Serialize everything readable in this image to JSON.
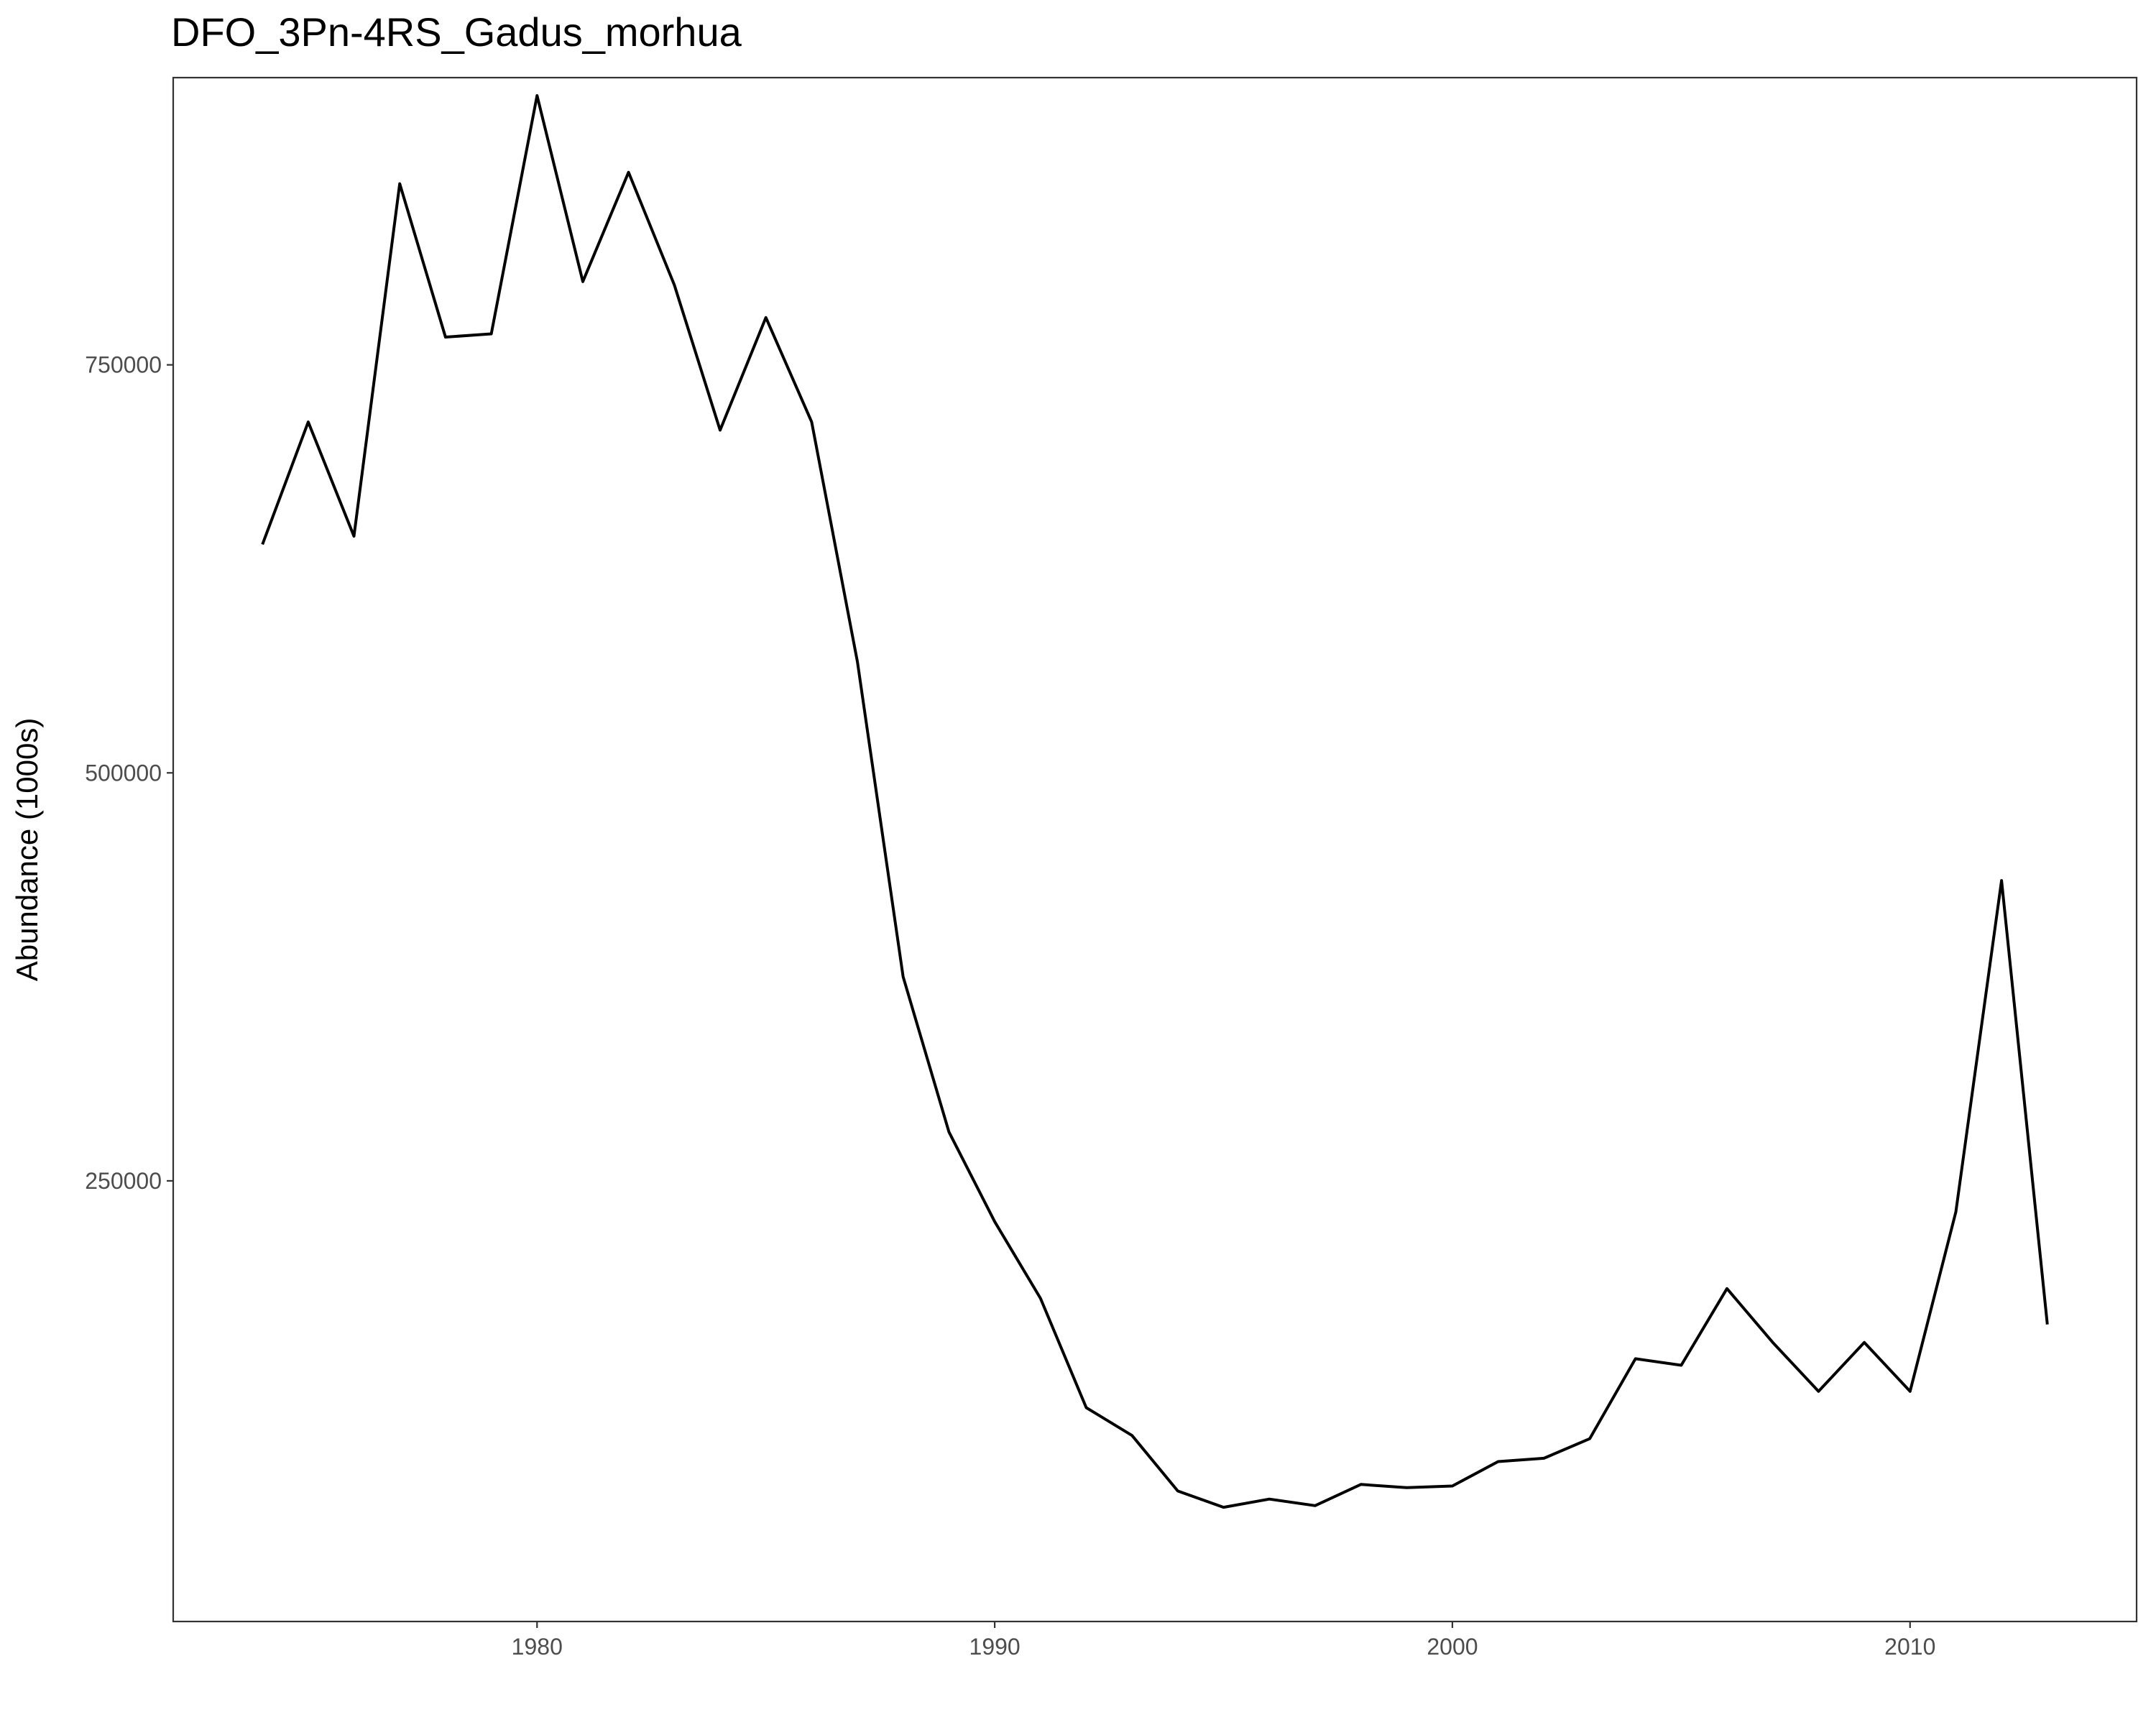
{
  "chart_data": {
    "type": "line",
    "title": "DFO_3Pn-4RS_Gadus_morhua",
    "xlabel": "",
    "ylabel": "Abundance (1000s)",
    "xlim": [
      1972.05,
      2014.95
    ],
    "ylim": [
      -20000,
      926000
    ],
    "x_ticks": [
      1980,
      1990,
      2000,
      2010
    ],
    "y_ticks": [
      250000,
      500000,
      750000
    ],
    "grid": false,
    "legend": "none",
    "colors": {
      "line": "#000000",
      "axis_text": "#4d4d4d",
      "panel_border": "#333333"
    },
    "series": [
      {
        "x": [
          1974,
          1975,
          1976,
          1977,
          1978,
          1979,
          1980,
          1981,
          1982,
          1983,
          1984,
          1985,
          1986,
          1987,
          1988,
          1989,
          1990,
          1991,
          1992,
          1993,
          1994,
          1995,
          1996,
          1997,
          1998,
          1999,
          2000,
          2001,
          2002,
          2003,
          2004,
          2005,
          2006,
          2007,
          2008,
          2009,
          2010,
          2011,
          2012,
          2013
        ],
        "values": [
          640000,
          715000,
          645000,
          861000,
          767000,
          769000,
          915000,
          801000,
          868000,
          799000,
          710000,
          779000,
          715000,
          568000,
          375000,
          280000,
          225000,
          178000,
          111000,
          94000,
          60000,
          50000,
          55000,
          51000,
          64000,
          62000,
          63000,
          78000,
          80000,
          92000,
          141000,
          137000,
          184000,
          151000,
          121000,
          151000,
          121000,
          231000,
          434000,
          162000
        ]
      }
    ]
  }
}
